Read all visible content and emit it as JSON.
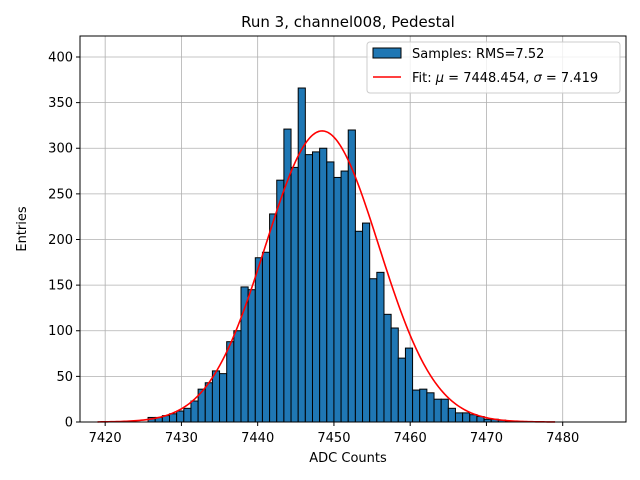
{
  "chart_data": {
    "type": "histogram",
    "title": "Run 3, channel008, Pedestal",
    "xlabel": "ADC Counts",
    "ylabel": "Entries",
    "xlim": [
      7416.7,
      7488.3
    ],
    "ylim": [
      0,
      423
    ],
    "xticks": [
      7420,
      7430,
      7440,
      7450,
      7460,
      7470,
      7480
    ],
    "yticks": [
      0,
      50,
      100,
      150,
      200,
      250,
      300,
      350,
      400
    ],
    "grid": true,
    "legend_position": "top-right",
    "bin_width": 0.9375,
    "bin_start": 7425.625,
    "bin_counts": [
      5,
      5,
      7,
      9,
      12,
      15,
      23,
      36,
      43,
      56,
      53,
      88,
      100,
      148,
      145,
      180,
      186,
      228,
      265,
      321,
      279,
      366,
      293,
      296,
      300,
      285,
      268,
      275,
      320,
      209,
      218,
      157,
      164,
      118,
      103,
      70,
      81,
      35,
      36,
      32,
      25,
      25,
      15,
      10,
      10,
      8,
      6,
      3,
      3,
      2,
      1
    ],
    "fit": {
      "mu": 7448.454,
      "sigma": 7.419,
      "amplitude": 319,
      "x_range": [
        7419,
        7479
      ]
    },
    "series": [
      {
        "name": "Samples",
        "label": "Samples: RMS=7.52",
        "type": "histogram",
        "color": "#1f77b4",
        "edgecolor": "#000000"
      },
      {
        "name": "Fit",
        "label_prefix": "Fit: ",
        "label_mu": "μ",
        "label_mu_value": " = 7448.454, ",
        "label_sigma": "σ",
        "label_sigma_value": " = 7.419",
        "type": "line",
        "color": "#ff0000"
      }
    ]
  }
}
